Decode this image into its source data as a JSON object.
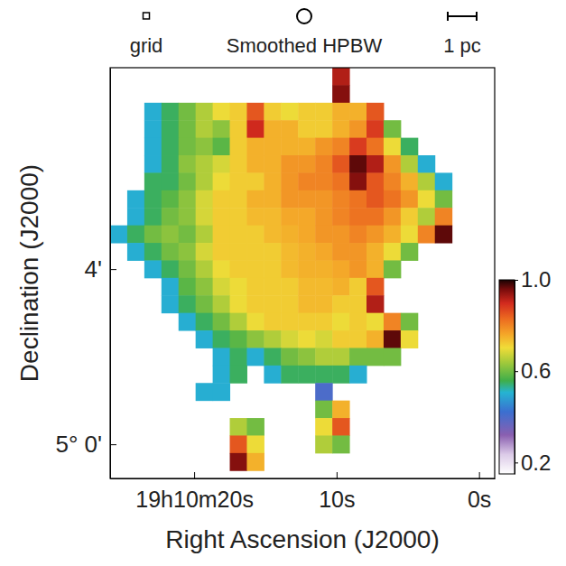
{
  "chart_data": {
    "type": "heatmap",
    "x_label": "Right Ascension (J2000)",
    "y_label": "Declination (J2000)",
    "annotations": [
      "grid",
      "Smoothed HPBW",
      "1 pc"
    ],
    "xlim": [
      25.9,
      -1.1
    ],
    "xticks": [
      {
        "value": 20,
        "label": "19h10m20s"
      },
      {
        "value": 10,
        "label": "10s"
      },
      {
        "value": 0,
        "label": "0s"
      }
    ],
    "ylim": [
      -0.78,
      8.6
    ],
    "yticks": [
      {
        "value": 0,
        "label": "5° 0'"
      },
      {
        "value": 4,
        "label": "4'"
      }
    ],
    "colorbar": {
      "range": [
        0.15,
        1.0
      ],
      "ticks": [
        0.2,
        0.6,
        {
          "value": 1.0,
          "label": "1.0"
        }
      ]
    },
    "x": [
      25.3,
      24.1,
      22.9,
      21.7,
      20.5,
      19.3,
      18.1,
      16.9,
      15.7,
      14.5,
      13.3,
      12.1,
      10.9,
      9.7,
      8.5,
      7.3,
      6.1,
      4.9,
      3.7,
      2.5,
      1.3,
      0.1
    ],
    "y": [
      8.4,
      8.0,
      7.6,
      7.2,
      6.8,
      6.4,
      6.0,
      5.6,
      5.2,
      4.8,
      4.4,
      4.0,
      3.6,
      3.2,
      2.8,
      2.4,
      2.0,
      1.6,
      1.2,
      0.8,
      0.4,
      0.0,
      -0.4
    ],
    "cells": [
      [
        null,
        null,
        null,
        null,
        null,
        null,
        null,
        null,
        null,
        null,
        null,
        null,
        null,
        0.92,
        null,
        null,
        null,
        null,
        null,
        null,
        null,
        null
      ],
      [
        null,
        null,
        null,
        null,
        null,
        null,
        null,
        null,
        null,
        null,
        null,
        null,
        null,
        0.95,
        null,
        null,
        null,
        null,
        null,
        null,
        null,
        null
      ],
      [
        null,
        null,
        0.5,
        0.55,
        0.6,
        0.65,
        0.7,
        0.72,
        0.85,
        0.72,
        0.7,
        0.72,
        0.72,
        0.75,
        0.75,
        0.85,
        null,
        null,
        null,
        null,
        null,
        null
      ],
      [
        null,
        null,
        0.5,
        0.55,
        0.6,
        0.65,
        0.62,
        0.72,
        0.9,
        0.75,
        0.75,
        0.72,
        0.72,
        0.75,
        0.78,
        0.88,
        0.6,
        null,
        null,
        null,
        null,
        null
      ],
      [
        null,
        null,
        0.5,
        0.55,
        0.6,
        0.62,
        0.58,
        0.72,
        0.75,
        0.75,
        0.75,
        0.75,
        0.78,
        0.8,
        0.88,
        0.82,
        0.7,
        0.55,
        null,
        null,
        null,
        null
      ],
      [
        null,
        null,
        0.5,
        0.55,
        0.62,
        0.65,
        0.68,
        0.72,
        0.75,
        0.75,
        0.78,
        0.78,
        0.8,
        0.85,
        0.97,
        0.92,
        0.78,
        0.65,
        0.5,
        null,
        null,
        null
      ],
      [
        null,
        null,
        0.55,
        0.55,
        0.6,
        0.65,
        0.7,
        0.72,
        0.72,
        0.75,
        0.78,
        0.8,
        0.8,
        0.82,
        0.95,
        0.85,
        0.8,
        0.75,
        0.65,
        0.5,
        null,
        null
      ],
      [
        null,
        0.5,
        0.55,
        0.58,
        0.62,
        0.68,
        0.72,
        0.72,
        0.75,
        0.75,
        0.78,
        0.78,
        0.78,
        0.8,
        0.82,
        0.85,
        0.82,
        0.78,
        0.7,
        0.6,
        null,
        null
      ],
      [
        null,
        0.5,
        0.55,
        0.6,
        0.62,
        0.68,
        0.72,
        0.72,
        0.74,
        0.74,
        0.76,
        0.76,
        0.78,
        0.8,
        0.82,
        0.82,
        0.78,
        0.72,
        0.65,
        0.8,
        null,
        null
      ],
      [
        0.5,
        0.55,
        0.6,
        0.62,
        0.6,
        0.65,
        0.72,
        0.72,
        0.72,
        0.74,
        0.75,
        0.76,
        0.78,
        0.78,
        0.8,
        0.78,
        0.75,
        0.7,
        0.8,
        0.97,
        null,
        null
      ],
      [
        null,
        0.5,
        0.55,
        0.6,
        0.62,
        0.68,
        0.72,
        0.72,
        0.72,
        0.72,
        0.74,
        0.75,
        0.76,
        0.78,
        0.78,
        0.75,
        0.7,
        0.6,
        null,
        null,
        null,
        null
      ],
      [
        null,
        null,
        0.5,
        0.55,
        0.6,
        0.65,
        0.7,
        0.72,
        0.72,
        0.72,
        0.74,
        0.75,
        0.75,
        0.76,
        0.78,
        0.75,
        0.6,
        null,
        null,
        null,
        null,
        null
      ],
      [
        null,
        null,
        null,
        0.5,
        0.58,
        0.62,
        0.68,
        0.7,
        0.72,
        0.72,
        0.72,
        0.74,
        0.74,
        0.75,
        0.72,
        0.85,
        null,
        null,
        null,
        null,
        null,
        null
      ],
      [
        null,
        null,
        null,
        0.5,
        0.55,
        0.6,
        0.65,
        0.7,
        0.72,
        0.72,
        0.72,
        0.74,
        0.74,
        0.72,
        0.72,
        0.92,
        null,
        null,
        null,
        null,
        null,
        null
      ],
      [
        null,
        null,
        null,
        null,
        0.5,
        0.55,
        0.6,
        0.65,
        0.7,
        0.72,
        0.72,
        0.72,
        0.72,
        0.7,
        0.72,
        0.7,
        0.8,
        0.6,
        null,
        null,
        null,
        null
      ],
      [
        null,
        null,
        null,
        null,
        null,
        0.5,
        0.55,
        0.58,
        0.62,
        0.65,
        0.68,
        0.7,
        0.68,
        0.72,
        0.72,
        0.75,
        0.97,
        0.7,
        null,
        null,
        null,
        null
      ],
      [
        null,
        null,
        null,
        null,
        null,
        null,
        0.5,
        0.55,
        0.5,
        0.55,
        0.6,
        0.62,
        0.65,
        0.65,
        0.6,
        0.6,
        0.6,
        null,
        null,
        null,
        null,
        null
      ],
      [
        null,
        null,
        null,
        null,
        null,
        null,
        0.5,
        0.55,
        null,
        0.5,
        0.55,
        0.55,
        0.55,
        0.55,
        0.5,
        null,
        null,
        null,
        null,
        null,
        null,
        null
      ],
      [
        null,
        null,
        null,
        null,
        null,
        0.5,
        0.5,
        null,
        null,
        null,
        null,
        null,
        0.4,
        null,
        null,
        null,
        null,
        null,
        null,
        null,
        null,
        null
      ],
      [
        null,
        null,
        null,
        null,
        null,
        null,
        null,
        null,
        null,
        null,
        null,
        null,
        0.6,
        0.75,
        null,
        null,
        null,
        null,
        null,
        null,
        null,
        null
      ],
      [
        null,
        null,
        null,
        null,
        null,
        null,
        null,
        0.65,
        0.6,
        null,
        null,
        null,
        0.7,
        0.85,
        null,
        null,
        null,
        null,
        null,
        null,
        null,
        null
      ],
      [
        null,
        null,
        null,
        null,
        null,
        null,
        null,
        0.85,
        0.7,
        null,
        null,
        null,
        0.65,
        0.6,
        null,
        null,
        null,
        null,
        null,
        null,
        null,
        null
      ],
      [
        null,
        null,
        null,
        null,
        null,
        null,
        null,
        0.95,
        0.75,
        null,
        null,
        null,
        null,
        null,
        null,
        null,
        null,
        null,
        null,
        null,
        null,
        null
      ]
    ]
  }
}
